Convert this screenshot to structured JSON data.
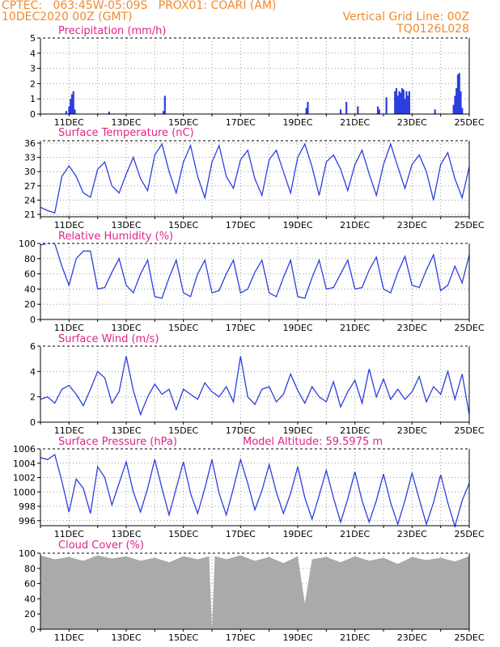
{
  "header": {
    "line1_left": "CPTEC:   063:45W-05:09S   PROX01: COARI (AM)",
    "line2_left": "10DEC2020 00Z (GMT)",
    "line2_right": "Vertical Grid Line: 00Z",
    "line3_right": "TQ0126L028"
  },
  "colors": {
    "header": "#f08a2c",
    "title": "#e0238c",
    "line": "#2b3fe0",
    "bar": "#2b3fe0",
    "cloud": "#aaaaaa",
    "grid": "#999999"
  },
  "x_tick_labels": [
    "11DEC",
    "13DEC",
    "15DEC",
    "17DEC",
    "19DEC",
    "21DEC",
    "23DEC",
    "25DEC"
  ],
  "chart_data": [
    {
      "type": "bar",
      "title": "Precipitation (mm/h)",
      "ylim": [
        0,
        5
      ],
      "yticks": [
        0,
        1,
        2,
        3,
        4,
        5
      ],
      "x": [
        0.9,
        1.0,
        1.05,
        1.1,
        1.15,
        1.2,
        2.4,
        4.3,
        4.35,
        9.3,
        9.35,
        10.5,
        10.7,
        11.1,
        11.8,
        11.85,
        12.1,
        12.4,
        12.45,
        12.5,
        12.55,
        12.6,
        12.65,
        12.7,
        12.75,
        12.8,
        12.85,
        12.9,
        13.8,
        14.45,
        14.5,
        14.55,
        14.6,
        14.65,
        14.7,
        14.75
      ],
      "values": [
        0.2,
        0.5,
        1.0,
        1.3,
        1.5,
        0.3,
        0.15,
        0.2,
        1.2,
        0.4,
        0.8,
        0.3,
        0.8,
        0.5,
        0.5,
        0.3,
        1.1,
        1.5,
        1.7,
        1.2,
        1.5,
        1.4,
        1.7,
        1.6,
        1.0,
        1.5,
        1.2,
        1.5,
        0.3,
        0.6,
        1.2,
        1.7,
        2.6,
        2.7,
        1.5,
        0.4
      ]
    },
    {
      "type": "line",
      "title": "Surface Temperature (nC)",
      "ylim": [
        20.5,
        36.5
      ],
      "yticks": [
        21,
        24,
        27,
        30,
        33,
        36
      ],
      "x": [
        0.0,
        0.25,
        0.5,
        0.75,
        1.0,
        1.25,
        1.5,
        1.75,
        2.0,
        2.25,
        2.5,
        2.75,
        3.0,
        3.25,
        3.5,
        3.75,
        4.0,
        4.25,
        4.5,
        4.75,
        5.0,
        5.25,
        5.5,
        5.75,
        6.0,
        6.25,
        6.5,
        6.75,
        7.0,
        7.25,
        7.5,
        7.75,
        8.0,
        8.25,
        8.5,
        8.75,
        9.0,
        9.25,
        9.5,
        9.75,
        10.0,
        10.25,
        10.5,
        10.75,
        11.0,
        11.25,
        11.5,
        11.75,
        12.0,
        12.25,
        12.5,
        12.75,
        13.0,
        13.25,
        13.5,
        13.75,
        14.0,
        14.25,
        14.5,
        14.75,
        15.0
      ],
      "values": [
        22.5,
        21.8,
        21.3,
        29.0,
        31.2,
        29.0,
        25.5,
        24.6,
        30.5,
        32.0,
        27.0,
        25.5,
        29.5,
        33.0,
        28.5,
        26.0,
        33.5,
        35.8,
        30.0,
        25.5,
        32.0,
        35.5,
        29.0,
        24.5,
        32.0,
        35.5,
        29.0,
        26.5,
        32.5,
        34.5,
        28.5,
        25.0,
        32.5,
        34.5,
        30.0,
        25.5,
        33.0,
        35.8,
        31.0,
        25.0,
        32.0,
        33.5,
        30.5,
        26.0,
        31.5,
        34.5,
        29.5,
        25.0,
        31.5,
        35.8,
        31.0,
        26.5,
        31.5,
        33.5,
        30.0,
        24.0,
        31.5,
        34.0,
        28.5,
        24.5,
        31.0
      ]
    },
    {
      "type": "line",
      "title": "Relative Humidity (%)",
      "ylim": [
        0,
        100
      ],
      "yticks": [
        0,
        20,
        40,
        60,
        80,
        100
      ],
      "x": [
        0.0,
        0.25,
        0.5,
        0.75,
        1.0,
        1.25,
        1.5,
        1.75,
        2.0,
        2.25,
        2.5,
        2.75,
        3.0,
        3.25,
        3.5,
        3.75,
        4.0,
        4.25,
        4.5,
        4.75,
        5.0,
        5.25,
        5.5,
        5.75,
        6.0,
        6.25,
        6.5,
        6.75,
        7.0,
        7.25,
        7.5,
        7.75,
        8.0,
        8.25,
        8.5,
        8.75,
        9.0,
        9.25,
        9.5,
        9.75,
        10.0,
        10.25,
        10.5,
        10.75,
        11.0,
        11.25,
        11.5,
        11.75,
        12.0,
        12.25,
        12.5,
        12.75,
        13.0,
        13.25,
        13.5,
        13.75,
        14.0,
        14.25,
        14.5,
        14.75,
        15.0
      ],
      "values": [
        98,
        100,
        100,
        70,
        45,
        80,
        90,
        90,
        40,
        42,
        62,
        80,
        45,
        35,
        60,
        78,
        30,
        28,
        55,
        78,
        35,
        30,
        60,
        78,
        35,
        38,
        60,
        78,
        35,
        40,
        62,
        78,
        35,
        30,
        55,
        78,
        30,
        28,
        55,
        78,
        40,
        42,
        60,
        78,
        40,
        42,
        65,
        82,
        40,
        35,
        62,
        83,
        45,
        42,
        65,
        85,
        38,
        45,
        70,
        48,
        85
      ]
    },
    {
      "type": "line",
      "title": "Surface Wind (m/s)",
      "ylim": [
        0,
        6
      ],
      "yticks": [
        0,
        2,
        4,
        6
      ],
      "x": [
        0.0,
        0.25,
        0.5,
        0.75,
        1.0,
        1.25,
        1.5,
        1.75,
        2.0,
        2.25,
        2.5,
        2.75,
        3.0,
        3.25,
        3.5,
        3.75,
        4.0,
        4.25,
        4.5,
        4.75,
        5.0,
        5.25,
        5.5,
        5.75,
        6.0,
        6.25,
        6.5,
        6.75,
        7.0,
        7.25,
        7.5,
        7.75,
        8.0,
        8.25,
        8.5,
        8.75,
        9.0,
        9.25,
        9.5,
        9.75,
        10.0,
        10.25,
        10.5,
        10.75,
        11.0,
        11.25,
        11.5,
        11.75,
        12.0,
        12.25,
        12.5,
        12.75,
        13.0,
        13.25,
        13.5,
        13.75,
        14.0,
        14.25,
        14.5,
        14.75,
        15.0
      ],
      "values": [
        1.8,
        2.0,
        1.5,
        2.6,
        2.9,
        2.2,
        1.3,
        2.6,
        4.0,
        3.5,
        1.5,
        2.4,
        5.2,
        2.5,
        0.6,
        2.0,
        3.0,
        2.2,
        2.6,
        1.0,
        2.6,
        2.2,
        1.8,
        3.1,
        2.4,
        2.0,
        2.8,
        1.6,
        5.2,
        2.0,
        1.4,
        2.6,
        2.8,
        1.6,
        2.2,
        3.8,
        2.5,
        1.5,
        2.8,
        2.0,
        1.6,
        3.2,
        1.2,
        2.4,
        3.3,
        1.5,
        4.2,
        2.0,
        3.4,
        1.8,
        2.6,
        1.8,
        2.4,
        3.6,
        1.6,
        2.8,
        2.2,
        4.0,
        1.8,
        3.8,
        0.6
      ]
    },
    {
      "type": "line",
      "title": "Surface Pressure (hPa)",
      "subtitle": "Model Altitude: 59.5975 m",
      "ylim": [
        995.3,
        1006
      ],
      "yticks": [
        996,
        998,
        1000,
        1002,
        1004,
        1006
      ],
      "x": [
        0.0,
        0.25,
        0.5,
        0.75,
        1.0,
        1.25,
        1.5,
        1.75,
        2.0,
        2.25,
        2.5,
        2.75,
        3.0,
        3.25,
        3.5,
        3.75,
        4.0,
        4.25,
        4.5,
        4.75,
        5.0,
        5.25,
        5.5,
        5.75,
        6.0,
        6.25,
        6.5,
        6.75,
        7.0,
        7.25,
        7.5,
        7.75,
        8.0,
        8.25,
        8.5,
        8.75,
        9.0,
        9.25,
        9.5,
        9.75,
        10.0,
        10.25,
        10.5,
        10.75,
        11.0,
        11.25,
        11.5,
        11.75,
        12.0,
        12.25,
        12.5,
        12.75,
        13.0,
        13.25,
        13.5,
        13.75,
        14.0,
        14.25,
        14.5,
        14.75,
        15.0
      ],
      "values": [
        1004.8,
        1004.5,
        1005.2,
        1001.5,
        997.2,
        1001.8,
        1000.5,
        997.0,
        1003.5,
        1002.0,
        998.2,
        1001.2,
        1004.2,
        1000.0,
        997.2,
        1000.5,
        1004.5,
        1000.5,
        996.8,
        1000.5,
        1004.2,
        999.8,
        997.0,
        1000.5,
        1004.5,
        999.8,
        996.8,
        1000.5,
        1004.5,
        1001.2,
        997.5,
        1000.2,
        1003.8,
        1000.0,
        997.0,
        999.8,
        1003.5,
        999.2,
        996.2,
        999.5,
        1003.0,
        999.2,
        995.8,
        999.0,
        1002.8,
        998.8,
        995.8,
        998.8,
        1002.5,
        998.5,
        995.5,
        998.8,
        1002.6,
        999.0,
        995.5,
        998.5,
        1002.4,
        998.5,
        995.2,
        998.8,
        1001.2
      ]
    },
    {
      "type": "area",
      "title": "Cloud Cover (%)",
      "ylim": [
        0,
        100
      ],
      "yticks": [
        0,
        20,
        40,
        60,
        80,
        100
      ],
      "x": [
        0.0,
        0.5,
        1.0,
        1.5,
        2.0,
        2.5,
        3.0,
        3.5,
        4.0,
        4.5,
        5.0,
        5.5,
        5.9,
        6.0,
        6.1,
        6.5,
        7.0,
        7.5,
        8.0,
        8.5,
        9.0,
        9.25,
        9.5,
        10.0,
        10.5,
        11.0,
        11.5,
        12.0,
        12.5,
        13.0,
        13.5,
        14.0,
        14.5,
        15.0
      ],
      "values": [
        97,
        92,
        95,
        90,
        97,
        93,
        96,
        90,
        94,
        88,
        96,
        92,
        96,
        0,
        96,
        92,
        97,
        90,
        95,
        87,
        96,
        34,
        92,
        95,
        88,
        96,
        90,
        94,
        86,
        95,
        91,
        94,
        89,
        96
      ]
    }
  ]
}
